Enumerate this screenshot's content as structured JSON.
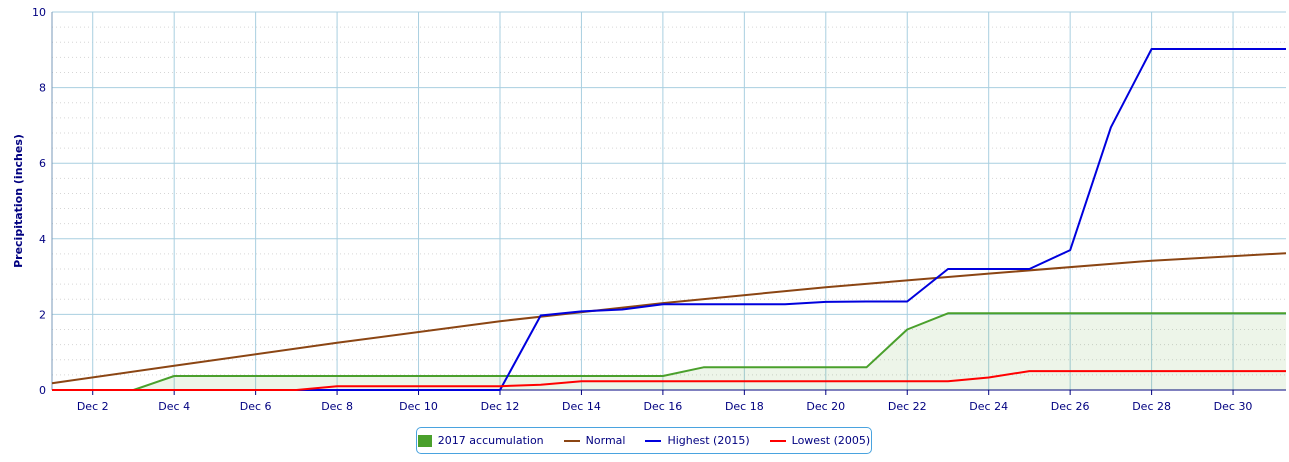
{
  "chart_data": {
    "type": "line",
    "title": "",
    "xlabel": "",
    "ylabel": "Precipitation (inches)",
    "ylim": [
      0,
      10
    ],
    "xlim": [
      1,
      31.3
    ],
    "y_ticks": [
      0,
      2,
      4,
      6,
      8,
      10
    ],
    "y_tick_labels": [
      "0",
      "2",
      "4",
      "6",
      "8",
      "10"
    ],
    "x_ticks": [
      2,
      4,
      6,
      8,
      10,
      12,
      14,
      16,
      18,
      20,
      22,
      24,
      26,
      28,
      30
    ],
    "x_tick_labels": [
      "Dec 2",
      "Dec 4",
      "Dec 6",
      "Dec 8",
      "Dec 10",
      "Dec 12",
      "Dec 14",
      "Dec 16",
      "Dec 18",
      "Dec 20",
      "Dec 22",
      "Dec 24",
      "Dec 26",
      "Dec 28",
      "Dec 30"
    ],
    "grid": true,
    "legend_position": "bottom-center",
    "series": [
      {
        "name": "2017 accumulation",
        "kind": "area",
        "color": "#4aa02c",
        "x": [
          1,
          2,
          3,
          4,
          5,
          6,
          7,
          8,
          9,
          10,
          11,
          12,
          13,
          14,
          15,
          16,
          17,
          18,
          19,
          20,
          21,
          22,
          23,
          24,
          25,
          26,
          27,
          28,
          29,
          30,
          31.3
        ],
        "y": [
          0,
          0,
          0,
          0.37,
          0.37,
          0.37,
          0.37,
          0.37,
          0.37,
          0.37,
          0.37,
          0.37,
          0.37,
          0.37,
          0.37,
          0.37,
          0.6,
          0.6,
          0.6,
          0.6,
          0.6,
          1.6,
          2.03,
          2.03,
          2.03,
          2.03,
          2.03,
          2.03,
          2.03,
          2.03,
          2.03
        ]
      },
      {
        "name": "Normal",
        "kind": "line",
        "color": "#8b4513",
        "x": [
          1,
          4,
          8,
          12,
          16,
          20,
          24,
          28,
          31.3
        ],
        "y": [
          0.18,
          0.64,
          1.25,
          1.82,
          2.3,
          2.72,
          3.08,
          3.42,
          3.62
        ]
      },
      {
        "name": "Highest (2015)",
        "kind": "line",
        "color": "#0000dd",
        "x": [
          1,
          2,
          3,
          4,
          5,
          6,
          7,
          8,
          9,
          10,
          11,
          12,
          13,
          14,
          15,
          16,
          17,
          18,
          19,
          20,
          21,
          22,
          23,
          24,
          25,
          26,
          27,
          28,
          29,
          30,
          31.3
        ],
        "y": [
          0,
          0,
          0,
          0,
          0,
          0,
          0,
          0,
          0,
          0,
          0,
          0,
          1.97,
          2.08,
          2.13,
          2.27,
          2.27,
          2.27,
          2.27,
          2.33,
          2.34,
          2.34,
          3.2,
          3.2,
          3.2,
          3.7,
          6.95,
          9.02,
          9.02,
          9.02,
          9.02
        ]
      },
      {
        "name": "Lowest (2005)",
        "kind": "line",
        "color": "#ff0000",
        "x": [
          1,
          2,
          3,
          4,
          5,
          6,
          7,
          8,
          9,
          10,
          11,
          12,
          13,
          14,
          15,
          16,
          17,
          18,
          19,
          20,
          21,
          22,
          23,
          24,
          25,
          26,
          27,
          28,
          29,
          30,
          31.3
        ],
        "y": [
          0,
          0,
          0,
          0,
          0,
          0,
          0,
          0.1,
          0.1,
          0.1,
          0.1,
          0.1,
          0.14,
          0.23,
          0.23,
          0.23,
          0.23,
          0.23,
          0.23,
          0.23,
          0.23,
          0.23,
          0.23,
          0.33,
          0.5,
          0.5,
          0.5,
          0.5,
          0.5,
          0.5,
          0.5
        ]
      }
    ]
  },
  "legend": {
    "items": [
      {
        "label": "2017 accumulation",
        "color": "#4aa02c",
        "style": "box"
      },
      {
        "label": "Normal",
        "color": "#8b4513",
        "style": "line"
      },
      {
        "label": "Highest (2015)",
        "color": "#0000dd",
        "style": "line"
      },
      {
        "label": "Lowest (2005)",
        "color": "#ff0000",
        "style": "line"
      }
    ]
  }
}
